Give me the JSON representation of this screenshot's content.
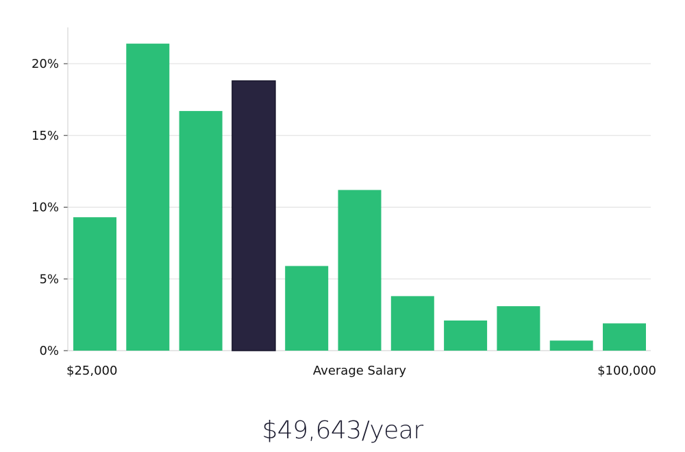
{
  "chart_data": {
    "type": "bar",
    "title": "",
    "xlabel": "Average Salary",
    "ylabel": "",
    "x_range_labels": {
      "min": "$25,000",
      "max": "$100,000"
    },
    "values": [
      9.3,
      21.4,
      16.7,
      18.8,
      5.9,
      11.2,
      3.8,
      2.1,
      3.1,
      0.7,
      1.9
    ],
    "highlight_index": 3,
    "ylim": [
      0,
      22.5
    ],
    "yticks": [
      0,
      5,
      10,
      15,
      20
    ],
    "ytick_labels": [
      "0%",
      "5%",
      "10%",
      "15%",
      "20%"
    ],
    "grid": true,
    "colors": {
      "bar": "#2bbf78",
      "highlight": "#28243f",
      "grid": "#dddddd",
      "axis": "#cccccc"
    }
  },
  "summary": {
    "salary_label": "$49,643/year"
  }
}
